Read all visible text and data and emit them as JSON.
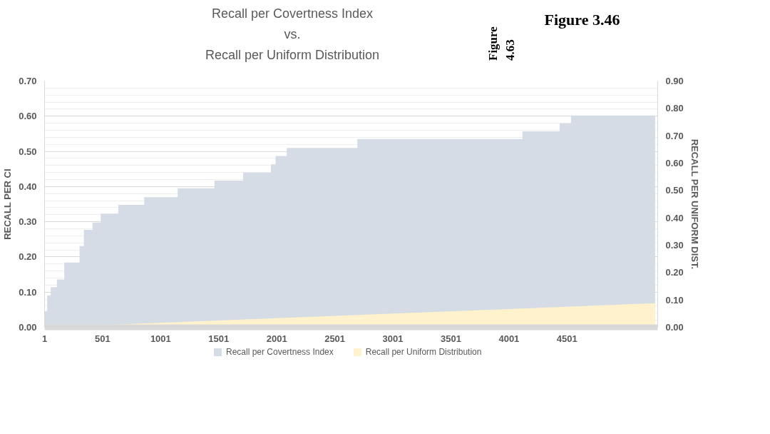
{
  "chart_data": {
    "type": "area",
    "title": "Recall per Covertness Index\nvs.\nRecall per Uniform Distribution",
    "annotations": [
      "Figure 4.63",
      "Figure 3.46"
    ],
    "ylabel": "RECALL PER CI",
    "y2label": "RECALL PER UNIFORM DIST.",
    "xlim": [
      1,
      5282
    ],
    "xticks": [
      1,
      501,
      1001,
      1501,
      2001,
      2501,
      3001,
      3501,
      4001,
      4501
    ],
    "ylim": [
      0,
      0.7
    ],
    "yticks": [
      {
        "value": 0,
        "label": "0.00"
      },
      {
        "value": 0.1,
        "label": "0.10"
      },
      {
        "value": 0.2,
        "label": "0.20"
      },
      {
        "value": 0.3,
        "label": "0.30"
      },
      {
        "value": 0.4,
        "label": "0.40"
      },
      {
        "value": 0.5,
        "label": "0.50"
      },
      {
        "value": 0.6,
        "label": "0.60"
      },
      {
        "value": 0.7,
        "label": "0.70"
      }
    ],
    "y2lim": [
      0,
      0.9
    ],
    "y2ticks": [
      {
        "value": 0,
        "label": "0.00"
      },
      {
        "value": 0.1,
        "label": "0.10"
      },
      {
        "value": 0.2,
        "label": "0.20"
      },
      {
        "value": 0.3,
        "label": "0.30"
      },
      {
        "value": 0.4,
        "label": "0.40"
      },
      {
        "value": 0.5,
        "label": "0.50"
      },
      {
        "value": 0.6,
        "label": "0.60"
      },
      {
        "value": 0.7,
        "label": "0.70"
      },
      {
        "value": 0.8,
        "label": "0.80"
      },
      {
        "value": 0.9,
        "label": "0.90"
      }
    ],
    "grid": "y",
    "legend": "bottom",
    "series": [
      {
        "name": "Recall per Covertness Index",
        "color": "#d6dce5",
        "x": [
          1,
          24,
          24,
          54,
          54,
          107,
          107,
          171,
          171,
          302,
          302,
          340,
          340,
          414,
          414,
          485,
          485,
          636,
          636,
          859,
          859,
          1147,
          1147,
          1464,
          1464,
          1711,
          1711,
          1950,
          1950,
          1991,
          1991,
          2087,
          2087,
          2695,
          2695,
          4117,
          4117,
          4437,
          4437,
          4535,
          4535,
          5260
        ],
        "values": [
          0.046,
          0.046,
          0.091,
          0.091,
          0.114,
          0.114,
          0.136,
          0.136,
          0.184,
          0.184,
          0.231,
          0.231,
          0.277,
          0.277,
          0.298,
          0.298,
          0.323,
          0.323,
          0.348,
          0.348,
          0.37,
          0.37,
          0.395,
          0.395,
          0.417,
          0.417,
          0.44,
          0.44,
          0.463,
          0.463,
          0.487,
          0.487,
          0.51,
          0.51,
          0.535,
          0.535,
          0.557,
          0.557,
          0.58,
          0.58,
          0.602,
          0.602
        ]
      },
      {
        "name": "Recall per Uniform Distribution",
        "axis": "y2",
        "color": "#fff2cc",
        "x": [
          322,
          2580,
          5260
        ],
        "values": [
          0.005,
          0.043,
          0.088
        ]
      }
    ]
  }
}
